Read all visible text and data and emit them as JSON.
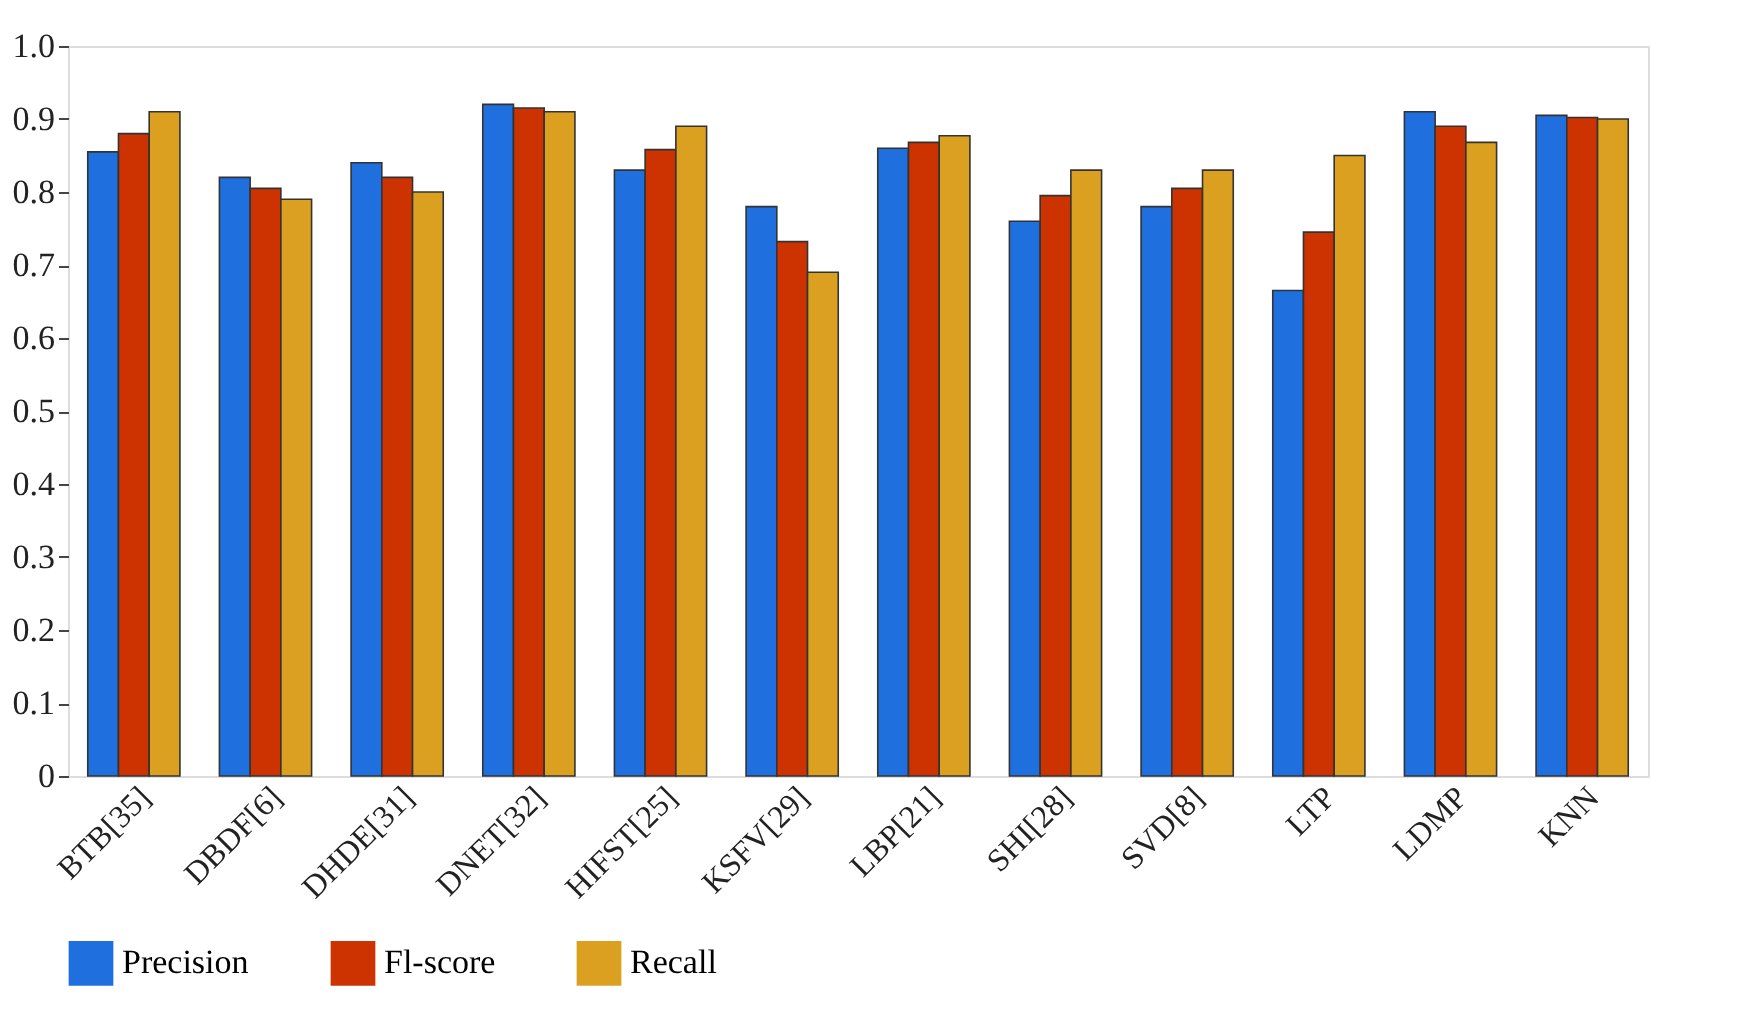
{
  "chart_data": {
    "type": "bar",
    "categories": [
      "BTB[35]",
      "DBDF[6]",
      "DHDE[31]",
      "DNET[32]",
      "HIFST[25]",
      "KSFV[29]",
      "LBP[21]",
      "SHI[28]",
      "SVD[8]",
      "LTP",
      "LDMP",
      "KNN"
    ],
    "series": [
      {
        "name": "Precision",
        "color": "#1f6fde",
        "values": [
          0.855,
          0.82,
          0.84,
          0.92,
          0.83,
          0.78,
          0.86,
          0.76,
          0.78,
          0.665,
          0.91,
          0.905
        ]
      },
      {
        "name": "Fl-score",
        "color": "#cc3300",
        "values": [
          0.88,
          0.805,
          0.82,
          0.915,
          0.858,
          0.732,
          0.868,
          0.795,
          0.805,
          0.745,
          0.89,
          0.902
        ]
      },
      {
        "name": "Recall",
        "color": "#dca020",
        "values": [
          0.91,
          0.79,
          0.8,
          0.91,
          0.89,
          0.69,
          0.877,
          0.83,
          0.83,
          0.85,
          0.868,
          0.9
        ]
      }
    ],
    "ylim": [
      0,
      1.0
    ],
    "yticks": [
      0,
      {
        "value": 0.1,
        "label": "0.1"
      },
      {
        "value": 0.2,
        "label": "0.2"
      },
      {
        "value": 0.3,
        "label": "0.3"
      },
      {
        "value": 0.4,
        "label": "0.4"
      },
      {
        "value": 0.5,
        "label": "0.5"
      },
      {
        "value": 0.6,
        "label": "0.6"
      },
      {
        "value": 0.7,
        "label": "0.7"
      },
      {
        "value": 0.8,
        "label": "0.8"
      },
      {
        "value": 0.9,
        "label": "0.9"
      },
      {
        "value": 1.0,
        "label": "1.0"
      }
    ],
    "grid": false,
    "legend": "bottom"
  }
}
